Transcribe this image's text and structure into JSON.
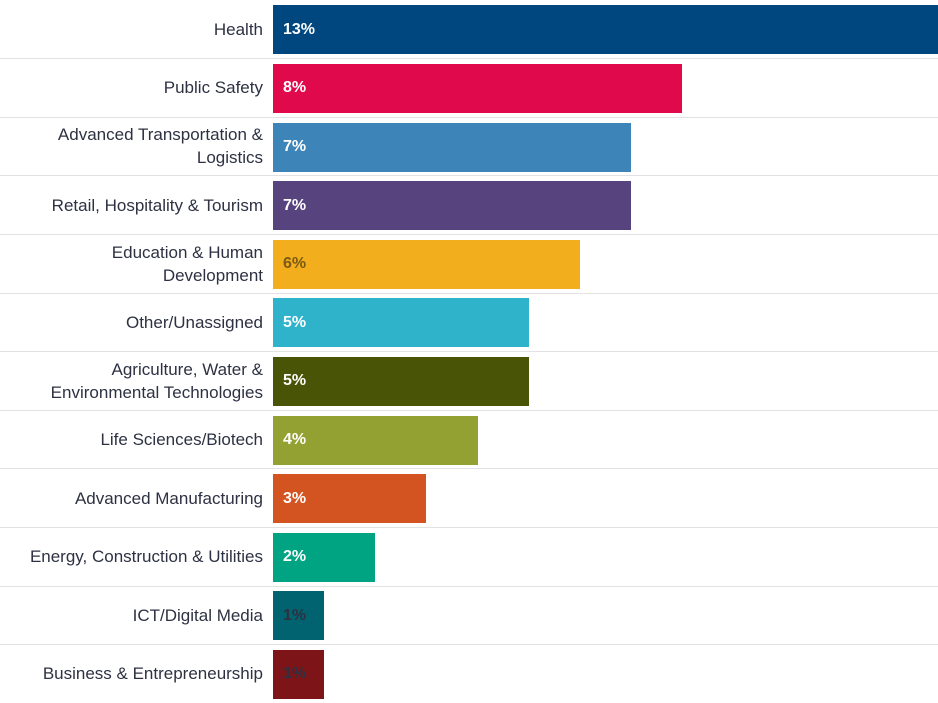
{
  "chart_data": {
    "type": "bar",
    "orientation": "horizontal",
    "categories": [
      "Health",
      "Public Safety",
      "Advanced Transportation & Logistics",
      "Retail, Hospitality & Tourism",
      "Education & Human Development",
      "Other/Unassigned",
      "Agriculture, Water & Environmental Technologies",
      "Life Sciences/Biotech",
      "Advanced Manufacturing",
      "Energy, Construction & Utilities",
      "ICT/Digital Media",
      "Business & Entrepreneurship"
    ],
    "values": [
      13,
      8,
      7,
      7,
      6,
      5,
      5,
      4,
      3,
      2,
      1,
      1
    ],
    "value_labels": [
      "13%",
      "8%",
      "7%",
      "7%",
      "6%",
      "5%",
      "5%",
      "4%",
      "3%",
      "2%",
      "1%",
      "1%"
    ],
    "colors": [
      "#00467f",
      "#e0094b",
      "#3d85b8",
      "#57447f",
      "#f2ae1c",
      "#2fb3cb",
      "#4a5406",
      "#93a032",
      "#d35321",
      "#00a482",
      "#00636f",
      "#7c1418"
    ],
    "value_label_colors": [
      "#ffffff",
      "#ffffff",
      "#ffffff",
      "#ffffff",
      "#7a5a14",
      "#ffffff",
      "#ffffff",
      "#ffffff",
      "#ffffff",
      "#ffffff",
      "#2d3142",
      "#2d3142"
    ],
    "xlim": [
      0,
      13
    ]
  }
}
